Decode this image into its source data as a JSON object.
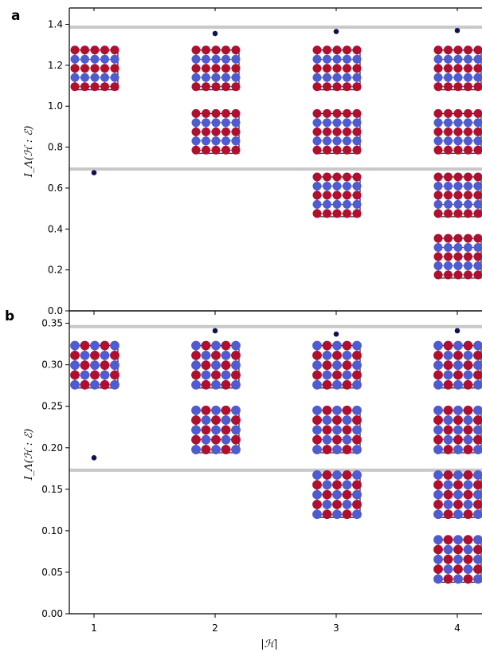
{
  "chart_data": [
    {
      "panel": "a",
      "type": "scatter",
      "title": "",
      "ylabel": "I_Λ(ℋ : ℰ)",
      "xlabel": "",
      "x_ticks": [
        1,
        2,
        3,
        4
      ],
      "ylim": [
        0,
        1.48
      ],
      "y_ticks": [
        0.0,
        0.2,
        0.4,
        0.6,
        0.8,
        1.0,
        1.2,
        1.4
      ],
      "y_tick_labels": [
        "0.0",
        "0.2",
        "0.4",
        "0.6",
        "0.8",
        "1.0",
        "1.2",
        "1.4"
      ],
      "reference_lines": [
        1.386,
        0.693
      ],
      "points": [
        {
          "x": 1,
          "y": 0.675
        },
        {
          "x": 2,
          "y": 1.355
        },
        {
          "x": 3,
          "y": 1.365
        },
        {
          "x": 4,
          "y": 1.37
        }
      ],
      "lattice_insets": [
        {
          "x": 1,
          "top": 1.29,
          "bottom": 1.08,
          "pattern": "alt"
        },
        {
          "x": 2,
          "top": 1.29,
          "bottom": 1.08,
          "pattern": "alt"
        },
        {
          "x": 2,
          "top": 0.98,
          "bottom": 0.77,
          "pattern": "alt"
        },
        {
          "x": 3,
          "top": 1.29,
          "bottom": 1.08,
          "pattern": "alt"
        },
        {
          "x": 3,
          "top": 0.98,
          "bottom": 0.77,
          "pattern": "alt"
        },
        {
          "x": 3,
          "top": 0.67,
          "bottom": 0.46,
          "pattern": "alt"
        },
        {
          "x": 4,
          "top": 1.29,
          "bottom": 1.08,
          "pattern": "alt"
        },
        {
          "x": 4,
          "top": 0.98,
          "bottom": 0.77,
          "pattern": "alt"
        },
        {
          "x": 4,
          "top": 0.67,
          "bottom": 0.46,
          "pattern": "alt"
        },
        {
          "x": 4,
          "top": 0.37,
          "bottom": 0.16,
          "pattern": "alt"
        }
      ]
    },
    {
      "panel": "b",
      "type": "scatter",
      "title": "",
      "ylabel": "I_Λ(ℋ : ℰ)",
      "xlabel": "|ℋ|",
      "x_ticks": [
        1,
        2,
        3,
        4
      ],
      "ylim": [
        0,
        0.365
      ],
      "y_ticks": [
        0.0,
        0.05,
        0.1,
        0.15,
        0.2,
        0.25,
        0.3,
        0.35
      ],
      "y_tick_labels": [
        "0.00",
        "0.05",
        "0.10",
        "0.15",
        "0.20",
        "0.25",
        "0.30",
        "0.35"
      ],
      "reference_lines": [
        0.346,
        0.173
      ],
      "points": [
        {
          "x": 1,
          "y": 0.188
        },
        {
          "x": 2,
          "y": 0.341
        },
        {
          "x": 3,
          "y": 0.337
        },
        {
          "x": 4,
          "y": 0.341
        }
      ],
      "lattice_insets": [
        {
          "x": 1,
          "top": 0.327,
          "bottom": 0.272,
          "pattern": "diag"
        },
        {
          "x": 2,
          "top": 0.327,
          "bottom": 0.272,
          "pattern": "diag"
        },
        {
          "x": 2,
          "top": 0.249,
          "bottom": 0.194,
          "pattern": "diag"
        },
        {
          "x": 3,
          "top": 0.327,
          "bottom": 0.272,
          "pattern": "diag"
        },
        {
          "x": 3,
          "top": 0.249,
          "bottom": 0.194,
          "pattern": "diag"
        },
        {
          "x": 3,
          "top": 0.171,
          "bottom": 0.116,
          "pattern": "diag"
        },
        {
          "x": 4,
          "top": 0.327,
          "bottom": 0.272,
          "pattern": "diag"
        },
        {
          "x": 4,
          "top": 0.249,
          "bottom": 0.194,
          "pattern": "diag"
        },
        {
          "x": 4,
          "top": 0.171,
          "bottom": 0.116,
          "pattern": "diag"
        },
        {
          "x": 4,
          "top": 0.093,
          "bottom": 0.038,
          "pattern": "diag"
        }
      ]
    }
  ],
  "colors": {
    "point": "#0d1352",
    "red_site": "#b01030",
    "blue_site": "#4f5bd0",
    "reference_line": "#c8c8c8",
    "grid_box": "#000000"
  },
  "x_tick_labels": [
    "1",
    "2",
    "3",
    "4"
  ]
}
